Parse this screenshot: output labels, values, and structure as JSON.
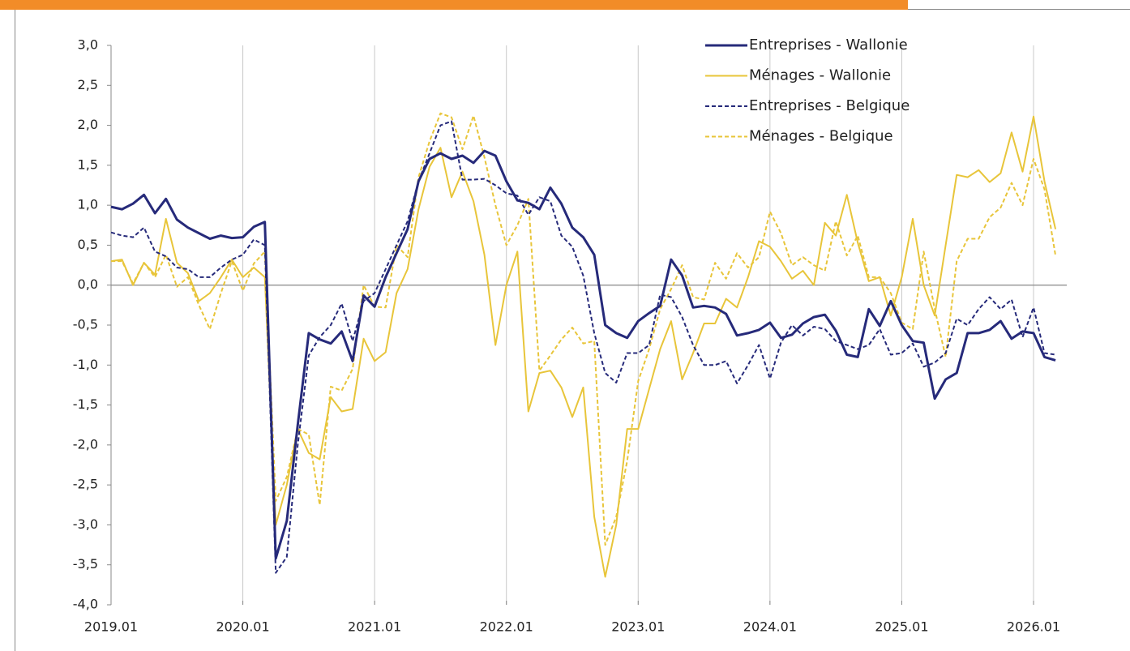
{
  "chart_data": {
    "type": "line",
    "categories": [
      "2019.01",
      null,
      null,
      null,
      null,
      null,
      null,
      null,
      null,
      null,
      null,
      null,
      "2020.01",
      null,
      null,
      null,
      null,
      null,
      null,
      null,
      null,
      null,
      null,
      null,
      "2021.01",
      null,
      null,
      null,
      null,
      null,
      null,
      null,
      null,
      null,
      null,
      null,
      "2022.01",
      null,
      null,
      null,
      null,
      null,
      null,
      null,
      null,
      null,
      null,
      null,
      "2023.01",
      null,
      null,
      null,
      null,
      null,
      null,
      null,
      null,
      null,
      null,
      null,
      "2024.01",
      null,
      null,
      null,
      null,
      null,
      null,
      null,
      null,
      null,
      null,
      null,
      "2025.01",
      null,
      null,
      null,
      null,
      null,
      null,
      null,
      null,
      null,
      null,
      null,
      "2026.01",
      null,
      null
    ],
    "ylim": [
      -4,
      3
    ],
    "yticks": [
      {
        "value": 3,
        "label": "3,0"
      },
      {
        "value": 2.5,
        "label": "2,5"
      },
      {
        "value": 2,
        "label": "2,0"
      },
      {
        "value": 1.5,
        "label": "1,5"
      },
      {
        "value": 1,
        "label": "1,0"
      },
      {
        "value": 0.5,
        "label": "0,5"
      },
      {
        "value": 0,
        "label": "0,0"
      },
      {
        "value": -0.5,
        "label": "-0,5"
      },
      {
        "value": -1,
        "label": "-1,0"
      },
      {
        "value": -1.5,
        "label": "-1,5"
      },
      {
        "value": -2,
        "label": "-2,0"
      },
      {
        "value": -2.5,
        "label": "-2,5"
      },
      {
        "value": -3,
        "label": "-3,0"
      },
      {
        "value": -3.5,
        "label": "-3,5"
      },
      {
        "value": -4,
        "label": "-4,0"
      }
    ],
    "legend": "top-right",
    "series": [
      {
        "name": "Entreprises - Wallonie",
        "color": "#262a7a",
        "line_style": "solid",
        "values": [
          0.98,
          0.95,
          1.02,
          1.13,
          0.9,
          1.08,
          0.82,
          0.72,
          0.65,
          0.58,
          0.62,
          0.59,
          0.6,
          0.73,
          0.79,
          -3.42,
          -2.95,
          -1.75,
          -0.6,
          -0.68,
          -0.73,
          -0.58,
          -0.95,
          -0.13,
          -0.27,
          0.1,
          0.4,
          0.7,
          1.3,
          1.58,
          1.65,
          1.58,
          1.62,
          1.53,
          1.68,
          1.62,
          1.3,
          1.06,
          1.03,
          0.95,
          1.22,
          1.02,
          0.72,
          0.6,
          0.38,
          -0.5,
          -0.6,
          -0.66,
          -0.45,
          -0.35,
          -0.26,
          0.32,
          0.12,
          -0.28,
          -0.26,
          -0.28,
          -0.36,
          -0.63,
          -0.6,
          -0.56,
          -0.47,
          -0.66,
          -0.62,
          -0.48,
          -0.4,
          -0.37,
          -0.57,
          -0.87,
          -0.9,
          -0.3,
          -0.51,
          -0.2,
          -0.5,
          -0.7,
          -0.72,
          -1.42,
          -1.18,
          -1.1,
          -0.6,
          -0.6,
          -0.56,
          -0.45,
          -0.67,
          -0.58,
          -0.6,
          -0.9,
          -0.94
        ]
      },
      {
        "name": "Ménages - Wallonie",
        "color": "#e8c53a",
        "line_style": "solid",
        "values": [
          0.3,
          0.32,
          0.0,
          0.28,
          0.13,
          0.83,
          0.28,
          0.15,
          -0.2,
          -0.1,
          0.1,
          0.32,
          0.1,
          0.22,
          0.1,
          -3.0,
          -2.5,
          -1.8,
          -2.1,
          -2.18,
          -1.4,
          -1.58,
          -1.55,
          -0.67,
          -0.95,
          -0.84,
          -0.1,
          0.2,
          0.95,
          1.48,
          1.72,
          1.1,
          1.42,
          1.05,
          0.38,
          -0.75,
          0.0,
          0.42,
          -1.58,
          -1.1,
          -1.07,
          -1.28,
          -1.65,
          -1.28,
          -2.9,
          -3.65,
          -3.0,
          -1.8,
          -1.8,
          -1.3,
          -0.8,
          -0.45,
          -1.18,
          -0.85,
          -0.48,
          -0.48,
          -0.17,
          -0.28,
          0.1,
          0.55,
          0.48,
          0.3,
          0.08,
          0.18,
          0.0,
          0.78,
          0.62,
          1.13,
          0.53,
          0.05,
          0.1,
          -0.38,
          0.1,
          0.83,
          0.0,
          -0.38,
          0.5,
          1.38,
          1.35,
          1.44,
          1.29,
          1.4,
          1.91,
          1.42,
          2.11,
          1.3,
          0.7
        ]
      },
      {
        "name": "Entreprises - Belgique",
        "color": "#262a7a",
        "line_style": "dashed",
        "values": [
          0.66,
          0.62,
          0.6,
          0.72,
          0.42,
          0.36,
          0.22,
          0.2,
          0.1,
          0.1,
          0.22,
          0.32,
          0.38,
          0.57,
          0.5,
          -3.6,
          -3.4,
          -2.0,
          -0.88,
          -0.65,
          -0.5,
          -0.23,
          -0.7,
          -0.2,
          -0.1,
          0.2,
          0.5,
          0.8,
          1.3,
          1.65,
          2.0,
          2.05,
          1.32,
          1.32,
          1.33,
          1.25,
          1.15,
          1.12,
          0.88,
          1.1,
          1.05,
          0.62,
          0.48,
          0.12,
          -0.6,
          -1.1,
          -1.22,
          -0.85,
          -0.85,
          -0.75,
          -0.12,
          -0.15,
          -0.4,
          -0.75,
          -1.0,
          -1.0,
          -0.95,
          -1.23,
          -1.0,
          -0.75,
          -1.17,
          -0.72,
          -0.5,
          -0.63,
          -0.52,
          -0.55,
          -0.7,
          -0.75,
          -0.8,
          -0.75,
          -0.55,
          -0.87,
          -0.85,
          -0.73,
          -1.02,
          -0.97,
          -0.85,
          -0.42,
          -0.5,
          -0.3,
          -0.15,
          -0.3,
          -0.18,
          -0.65,
          -0.28,
          -0.85,
          -0.87
        ]
      },
      {
        "name": "Ménages - Belgique",
        "color": "#e8c53a",
        "line_style": "dashed",
        "values": [
          0.3,
          0.3,
          0.02,
          0.28,
          0.1,
          0.38,
          -0.02,
          0.1,
          -0.25,
          -0.55,
          -0.1,
          0.3,
          -0.07,
          0.27,
          0.42,
          -2.7,
          -2.4,
          -1.8,
          -1.87,
          -2.75,
          -1.27,
          -1.32,
          -1.05,
          0.0,
          -0.27,
          -0.28,
          0.5,
          0.35,
          1.35,
          1.8,
          2.15,
          2.1,
          1.7,
          2.12,
          1.6,
          1.0,
          0.5,
          0.75,
          1.08,
          -1.07,
          -0.88,
          -0.68,
          -0.53,
          -0.73,
          -0.7,
          -3.25,
          -2.9,
          -2.2,
          -1.2,
          -0.8,
          -0.3,
          -0.05,
          0.25,
          -0.15,
          -0.18,
          0.28,
          0.08,
          0.4,
          0.22,
          0.35,
          0.92,
          0.65,
          0.25,
          0.35,
          0.25,
          0.18,
          0.8,
          0.37,
          0.62,
          0.1,
          0.1,
          -0.1,
          -0.47,
          -0.55,
          0.42,
          -0.3,
          -0.9,
          0.3,
          0.58,
          0.58,
          0.85,
          0.97,
          1.28,
          1.0,
          1.58,
          1.2,
          0.37
        ]
      }
    ]
  }
}
